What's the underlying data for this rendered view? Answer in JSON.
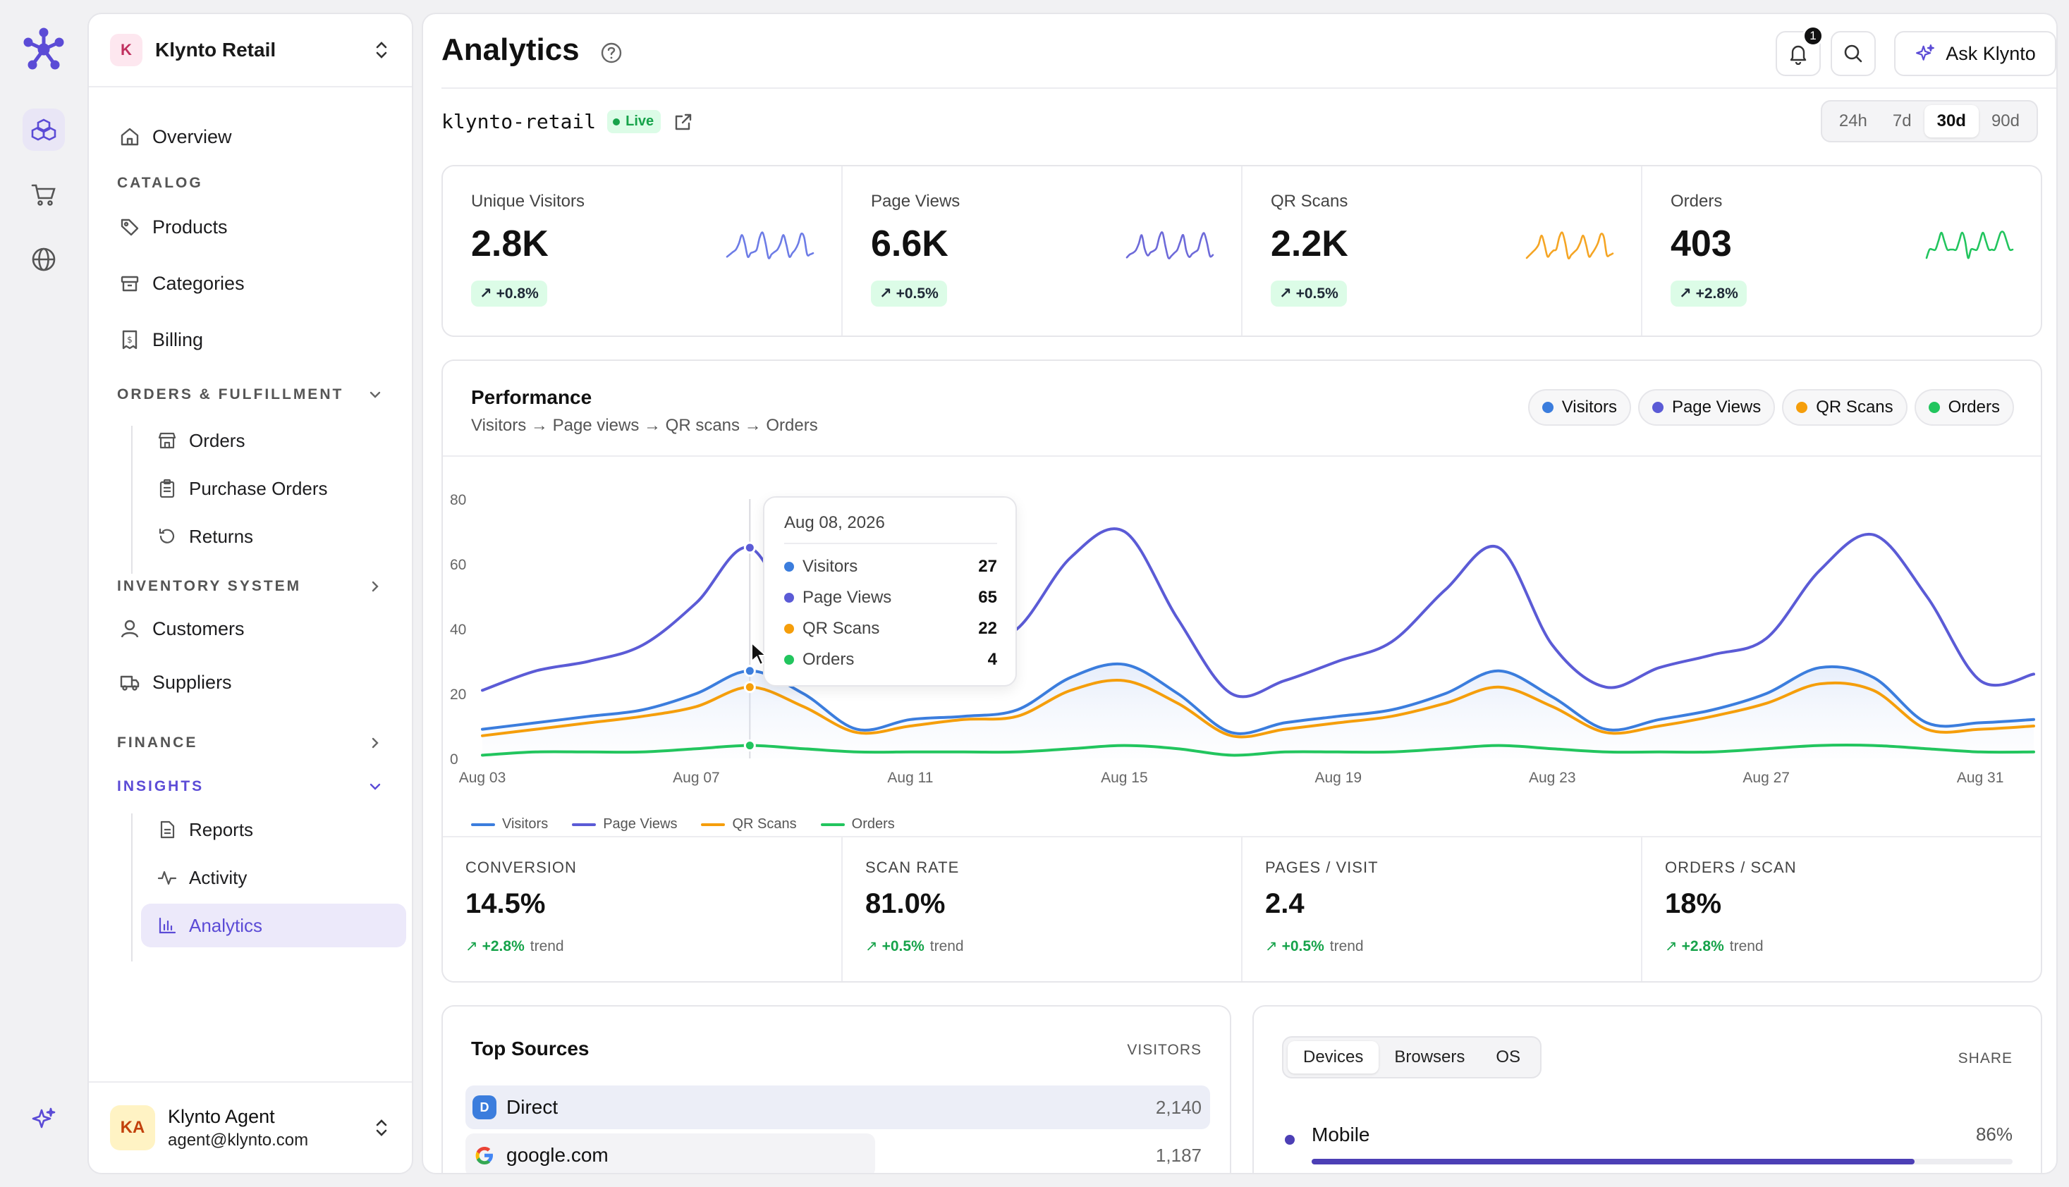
{
  "app": {
    "name": "Klynto"
  },
  "workspace": {
    "initial": "K",
    "name": "Klynto Retail"
  },
  "sidebar": {
    "overview": "Overview",
    "catalog_section": "CATALOG",
    "catalog": [
      "Products",
      "Categories",
      "Billing"
    ],
    "orders_section": "ORDERS & FULFILLMENT",
    "orders": [
      "Orders",
      "Purchase Orders",
      "Returns"
    ],
    "inventory_section": "INVENTORY SYSTEM",
    "customers": "Customers",
    "suppliers": "Suppliers",
    "finance_section": "FINANCE",
    "insights_section": "INSIGHTS",
    "insights": [
      "Reports",
      "Activity",
      "Analytics"
    ]
  },
  "user": {
    "initials": "KA",
    "name": "Klynto Agent",
    "email": "agent@klynto.com"
  },
  "header": {
    "title": "Analytics",
    "notification_count": "1",
    "ask_label": "Ask Klynto"
  },
  "site": {
    "name": "klynto-retail",
    "status": "Live"
  },
  "ranges": {
    "options": [
      "24h",
      "7d",
      "30d",
      "90d"
    ],
    "selected": "30d"
  },
  "kpis": [
    {
      "label": "Unique Visitors",
      "value": "2.8K",
      "change": "+0.8%",
      "color": "#6d7ce6"
    },
    {
      "label": "Page Views",
      "value": "6.6K",
      "change": "+0.5%",
      "color": "#6d6ad9"
    },
    {
      "label": "QR Scans",
      "value": "2.2K",
      "change": "+0.5%",
      "color": "#f5a524"
    },
    {
      "label": "Orders",
      "value": "403",
      "change": "+2.8%",
      "color": "#22c55e"
    }
  ],
  "performance": {
    "title": "Performance",
    "subtitle": "Visitors → Page views → QR scans → Orders",
    "pills": [
      {
        "label": "Visitors",
        "color": "#3b7ddd"
      },
      {
        "label": "Page Views",
        "color": "#5b5bd6"
      },
      {
        "label": "QR Scans",
        "color": "#f59e0b"
      },
      {
        "label": "Orders",
        "color": "#22c55e"
      }
    ],
    "tooltip": {
      "date": "Aug 08, 2026",
      "rows": [
        {
          "label": "Visitors",
          "value": "27",
          "color": "#3b7ddd"
        },
        {
          "label": "Page Views",
          "value": "65",
          "color": "#5b5bd6"
        },
        {
          "label": "QR Scans",
          "value": "22",
          "color": "#f59e0b"
        },
        {
          "label": "Orders",
          "value": "4",
          "color": "#22c55e"
        }
      ]
    }
  },
  "chart_data": {
    "type": "line",
    "x": [
      "Aug 03",
      "Aug 04",
      "Aug 05",
      "Aug 06",
      "Aug 07",
      "Aug 08",
      "Aug 09",
      "Aug 10",
      "Aug 11",
      "Aug 12",
      "Aug 13",
      "Aug 14",
      "Aug 15",
      "Aug 16",
      "Aug 17",
      "Aug 18",
      "Aug 19",
      "Aug 20",
      "Aug 21",
      "Aug 22",
      "Aug 23",
      "Aug 24",
      "Aug 25",
      "Aug 26",
      "Aug 27",
      "Aug 28",
      "Aug 29",
      "Aug 30",
      "Aug 31",
      "Sep 01"
    ],
    "x_tick_labels": [
      "Aug 03",
      "Aug 07",
      "Aug 11",
      "Aug 15",
      "Aug 19",
      "Aug 23",
      "Aug 27",
      "Aug 31"
    ],
    "ylim": [
      0,
      80
    ],
    "y_ticks": [
      0,
      20,
      40,
      60,
      80
    ],
    "series": [
      {
        "name": "Visitors",
        "color": "#3b7ddd",
        "values": [
          9,
          11,
          13,
          15,
          20,
          27,
          20,
          9,
          12,
          13,
          15,
          25,
          29,
          20,
          8,
          11,
          13,
          15,
          20,
          27,
          19,
          9,
          12,
          15,
          20,
          28,
          25,
          11,
          11,
          12
        ]
      },
      {
        "name": "Page Views",
        "color": "#5b5bd6",
        "values": [
          21,
          27,
          30,
          35,
          48,
          65,
          38,
          25,
          31,
          34,
          40,
          62,
          70,
          43,
          20,
          24,
          30,
          36,
          52,
          65,
          35,
          22,
          28,
          32,
          37,
          58,
          69,
          50,
          24,
          26
        ]
      },
      {
        "name": "QR Scans",
        "color": "#f59e0b",
        "values": [
          7,
          9,
          11,
          13,
          16,
          22,
          16,
          8,
          10,
          12,
          13,
          21,
          24,
          17,
          7,
          9,
          11,
          13,
          17,
          22,
          16,
          8,
          10,
          13,
          17,
          23,
          21,
          9,
          9,
          10
        ]
      },
      {
        "name": "Orders",
        "color": "#22c55e",
        "values": [
          1,
          2,
          2,
          2,
          3,
          4,
          3,
          2,
          2,
          2,
          2,
          3,
          4,
          3,
          1,
          2,
          2,
          2,
          3,
          4,
          3,
          2,
          2,
          2,
          3,
          4,
          4,
          3,
          2,
          2
        ]
      }
    ],
    "highlight_index": 5
  },
  "ratios": [
    {
      "label": "CONVERSION",
      "value": "14.5%",
      "change": "+2.8%",
      "suffix": "trend"
    },
    {
      "label": "SCAN RATE",
      "value": "81.0%",
      "change": "+0.5%",
      "suffix": "trend"
    },
    {
      "label": "PAGES / VISIT",
      "value": "2.4",
      "change": "+0.5%",
      "suffix": "trend"
    },
    {
      "label": "ORDERS / SCAN",
      "value": "18%",
      "change": "+2.8%",
      "suffix": "trend"
    }
  ],
  "sources": {
    "title": "Top Sources",
    "column": "VISITORS",
    "rows": [
      {
        "icon": "D",
        "name": "Direct",
        "count": "2,140",
        "share": 1.0
      },
      {
        "icon": "G",
        "name": "google.com",
        "count": "1,187",
        "share": 0.55
      }
    ]
  },
  "devices": {
    "tabs": [
      "Devices",
      "Browsers",
      "OS"
    ],
    "selected": "Devices",
    "column": "SHARE",
    "rows": [
      {
        "name": "Mobile",
        "pct": "86%",
        "share": 0.86
      }
    ]
  }
}
